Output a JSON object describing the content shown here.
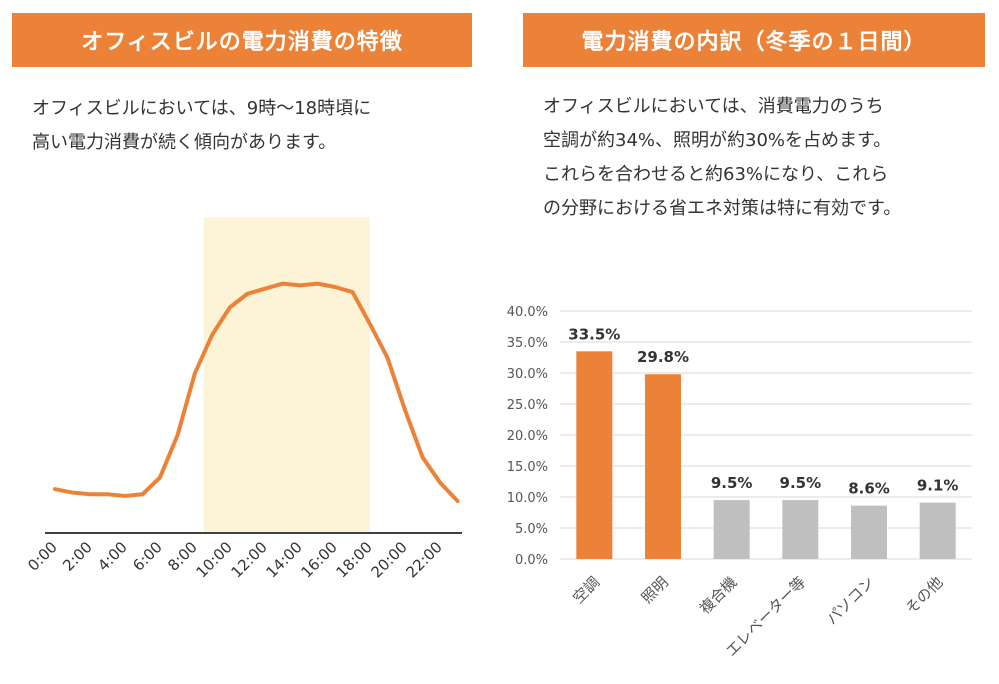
{
  "left_panel": {
    "title": "オフィスビルの電力消費の特徴",
    "description_lines": [
      "オフィスビルにおいては、9時～18時頃に",
      "高い電力消費が続く傾向があります。"
    ]
  },
  "right_panel": {
    "title": "電力消費の内訳（冬季の１日間）",
    "description_lines": [
      "オフィスビルにおいては、消費電力のうち",
      "空調が約34%、照明が約30%を占めます。",
      "これらを合わせると約63%になり、これら",
      "の分野における省エネ対策は特に有効です。"
    ]
  },
  "colors": {
    "accent": "#ec8237",
    "highlight": "#fdf3d6",
    "gray_bar": "#bfbfbf",
    "grid": "#d9d9d9"
  },
  "chart_data": [
    {
      "type": "line",
      "x_tick_labels": [
        "0:00",
        "2:00",
        "4:00",
        "6:00",
        "8:00",
        "10:00",
        "12:00",
        "14:00",
        "16:00",
        "18:00",
        "20:00",
        "22:00"
      ],
      "x": [
        0,
        1,
        2,
        3,
        4,
        5,
        6,
        7,
        8,
        9,
        10,
        11,
        12,
        13,
        14,
        15,
        16,
        17,
        18,
        19,
        20,
        21,
        22,
        23
      ],
      "series": [
        {
          "values": [
            26,
            24,
            23,
            23,
            22,
            23,
            33,
            58,
            95,
            118,
            134,
            142,
            145,
            148,
            147,
            148,
            146,
            143,
            124,
            104,
            73,
            45,
            30,
            19
          ]
        }
      ],
      "ylim": [
        0,
        165
      ],
      "highlight_range": [
        8.5,
        18
      ],
      "grid": false
    },
    {
      "type": "bar",
      "categories": [
        "空調",
        "照明",
        "複合機",
        "エレベーター等",
        "パソコン",
        "その他"
      ],
      "values": [
        33.5,
        29.8,
        9.5,
        9.5,
        8.6,
        9.1
      ],
      "data_labels": [
        "33.5%",
        "29.8%",
        "9.5%",
        "9.5%",
        "8.6%",
        "9.1%"
      ],
      "highlighted": [
        true,
        true,
        false,
        false,
        false,
        false
      ],
      "y_tick_labels": [
        "0.0%",
        "5.0%",
        "10.0%",
        "15.0%",
        "20.0%",
        "25.0%",
        "30.0%",
        "35.0%",
        "40.0%"
      ],
      "ylim": [
        0,
        40
      ],
      "grid": true
    }
  ]
}
